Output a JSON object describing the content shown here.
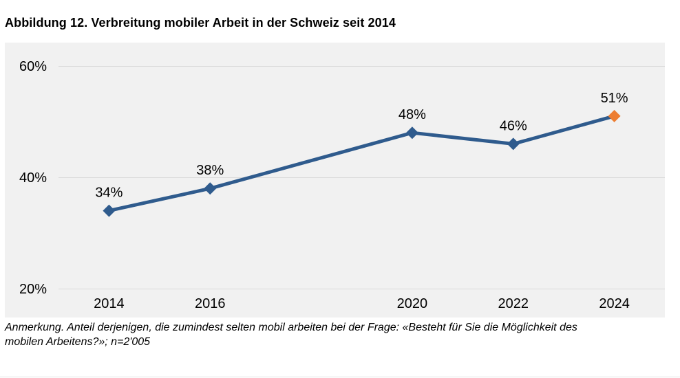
{
  "figure": {
    "title": "Abbildung 12. Verbreitung mobiler Arbeit in der Schweiz seit 2014",
    "note_lines": [
      "Anmerkung. Anteil derjenigen, die zumindest selten mobil arbeiten bei der Frage: «Besteht für Sie die Möglichkeit des",
      "mobilen Arbeitens?»; n=2'005"
    ],
    "note_full": "Anmerkung. Anteil derjenigen, die zumindest selten mobil arbeiten bei der Frage: «Besteht für Sie die Möglichkeit des mobilen Arbeitens?»; n=2'005"
  },
  "chart_data": {
    "type": "line",
    "title": "Abbildung 12. Verbreitung mobiler Arbeit in der Schweiz seit 2014",
    "x": [
      2014,
      2016,
      2020,
      2022,
      2024
    ],
    "values": [
      34,
      38,
      48,
      46,
      51
    ],
    "point_labels": [
      "34%",
      "38%",
      "48%",
      "46%",
      "51%"
    ],
    "x_axis_slots": [
      2014,
      2016,
      2018,
      2020,
      2022,
      2024
    ],
    "xtick_labels": [
      "2014",
      "2016",
      "2020",
      "2022",
      "2024"
    ],
    "yticks": [
      20,
      40,
      60
    ],
    "ytick_labels": [
      "20%",
      "40%",
      "60%"
    ],
    "ylim": [
      20,
      60
    ],
    "grid": true,
    "legend": false,
    "xlabel": "",
    "ylabel": "",
    "colors": {
      "line": "#2f5b8d",
      "marker": "#2f5b8d",
      "last_marker": "#ed7d31",
      "plot_background": "#f1f1f1",
      "gridline": "#d9d9d9",
      "text": "#000000"
    }
  }
}
